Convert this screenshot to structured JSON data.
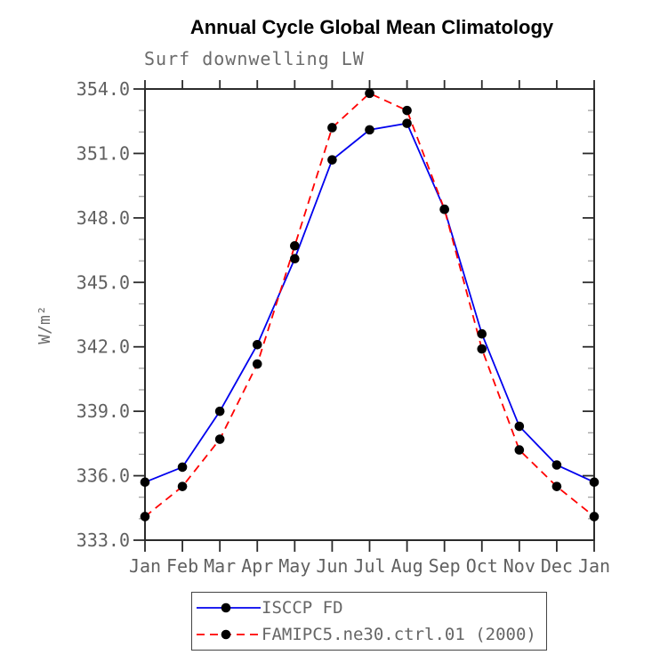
{
  "header": {
    "title": "Annual Cycle Global Mean Climatology"
  },
  "chart_data": {
    "type": "line",
    "title": "Annual Cycle Global Mean Climatology",
    "subtitle": "Surf downwelling LW",
    "ylabel": "W/m²",
    "xlabel": "",
    "categories": [
      "Jan",
      "Feb",
      "Mar",
      "Apr",
      "May",
      "Jun",
      "Jul",
      "Aug",
      "Sep",
      "Oct",
      "Nov",
      "Dec",
      "Jan"
    ],
    "series": [
      {
        "name": "ISCCP FD",
        "color": "#0000ee",
        "line_style": "solid",
        "marker": "black-dot",
        "values": [
          335.7,
          336.4,
          339.0,
          342.1,
          346.1,
          350.7,
          352.1,
          352.4,
          348.4,
          342.6,
          338.3,
          336.5,
          335.7
        ]
      },
      {
        "name": "FAMIPC5.ne30.ctrl.01 (2000)",
        "color": "#ff0000",
        "line_style": "dashed",
        "marker": "black-dot",
        "values": [
          334.1,
          335.5,
          337.7,
          341.2,
          346.7,
          352.2,
          353.8,
          353.0,
          348.4,
          341.9,
          337.2,
          335.5,
          334.1
        ]
      }
    ],
    "ylim": [
      333.0,
      354.0
    ],
    "ytick_major_interval": 3.0,
    "ytick_minor_interval": 1.0,
    "ytick_labels": [
      "333.0",
      "336.0",
      "339.0",
      "342.0",
      "345.0",
      "348.0",
      "351.0",
      "354.0"
    ],
    "grid": false,
    "legend_position": "bottom-center-boxed"
  },
  "colors": {
    "axis": "#2b2b2b",
    "minor_tick": "#999999",
    "tick_label": "#606060",
    "marker": "#000000",
    "title": "#000000",
    "subtitle": "#6b6b6b"
  }
}
